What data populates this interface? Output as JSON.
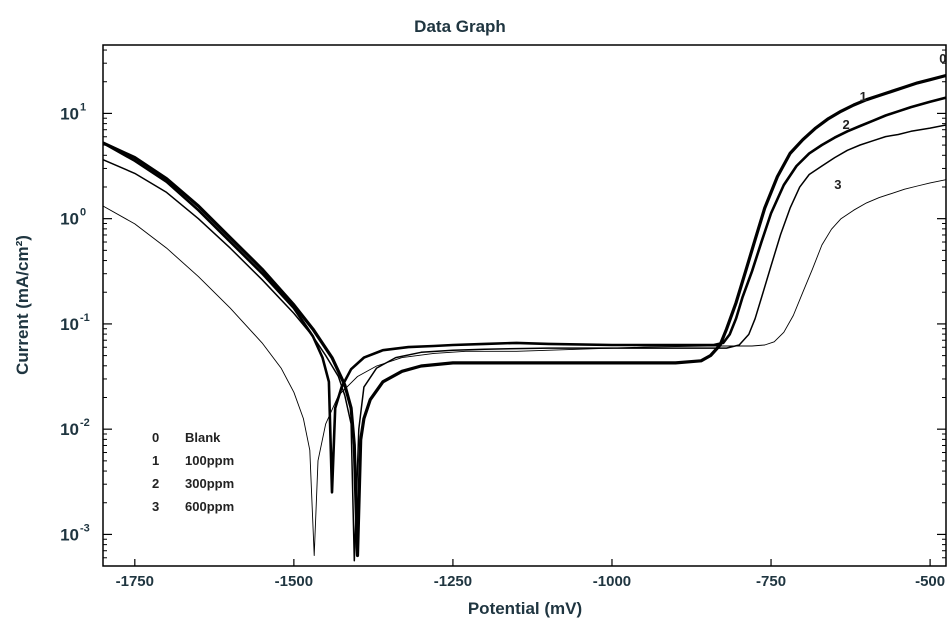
{
  "chart_data": {
    "type": "line",
    "title": "Data Graph",
    "xlabel": "Potential (mV)",
    "ylabel": "Current (mA/cm²)",
    "xlim": [
      -1800,
      -475
    ],
    "ylim_log10": [
      -3.3,
      1.65
    ],
    "y_scale": "log",
    "grid": false,
    "x_ticks": [
      -1750,
      -1500,
      -1250,
      -1000,
      -750,
      -500
    ],
    "x_tick_labels": [
      "-1750",
      "-1500",
      "-1250",
      "-1000",
      "-750",
      "-500"
    ],
    "y_ticks": [
      {
        "base": "10",
        "exp": "1",
        "log": 1
      },
      {
        "base": "10",
        "exp": "0",
        "log": 0
      },
      {
        "base": "10",
        "exp": "-1",
        "log": -1
      },
      {
        "base": "10",
        "exp": "-2",
        "log": -2
      },
      {
        "base": "10",
        "exp": "-3",
        "log": -3
      }
    ],
    "legend": {
      "position": "bottom-left",
      "entries": [
        {
          "key": "0",
          "label": "Blank"
        },
        {
          "key": "1",
          "label": "100ppm"
        },
        {
          "key": "2",
          "label": "300ppm"
        },
        {
          "key": "3",
          "label": "600ppm"
        }
      ]
    },
    "series": [
      {
        "key": "0",
        "color": "#000000",
        "x": [
          -1800,
          -1750,
          -1700,
          -1650,
          -1600,
          -1550,
          -1500,
          -1470,
          -1440,
          -1420,
          -1410,
          -1405,
          -1400,
          -1395,
          -1390,
          -1380,
          -1360,
          -1330,
          -1300,
          -1250,
          -1200,
          -1100,
          -1000,
          -900,
          -860,
          -845,
          -830,
          -820,
          -805,
          -790,
          -775,
          -760,
          -740,
          -720,
          -700,
          -680,
          -660,
          -640,
          -620,
          -600,
          -580,
          -560,
          -540,
          -520,
          -500,
          -475
        ],
        "logy": [
          0.72,
          0.58,
          0.38,
          0.12,
          -0.18,
          -0.48,
          -0.82,
          -1.05,
          -1.32,
          -1.58,
          -1.8,
          -2.15,
          -3.2,
          -2.1,
          -1.9,
          -1.72,
          -1.55,
          -1.45,
          -1.4,
          -1.37,
          -1.37,
          -1.37,
          -1.37,
          -1.37,
          -1.35,
          -1.3,
          -1.2,
          -1.05,
          -0.8,
          -0.5,
          -0.2,
          0.1,
          0.4,
          0.62,
          0.75,
          0.86,
          0.95,
          1.02,
          1.08,
          1.13,
          1.17,
          1.21,
          1.25,
          1.29,
          1.32,
          1.36
        ]
      },
      {
        "key": "1",
        "color": "#000000",
        "x": [
          -1800,
          -1750,
          -1700,
          -1650,
          -1600,
          -1550,
          -1500,
          -1470,
          -1455,
          -1445,
          -1440,
          -1435,
          -1425,
          -1410,
          -1390,
          -1360,
          -1320,
          -1280,
          -1250,
          -1200,
          -1150,
          -1100,
          -1000,
          -900,
          -840,
          -825,
          -815,
          -805,
          -795,
          -780,
          -765,
          -750,
          -730,
          -710,
          -690,
          -670,
          -650,
          -630,
          -610,
          -590,
          -570,
          -550,
          -530,
          -500,
          -475
        ],
        "logy": [
          0.72,
          0.55,
          0.35,
          0.08,
          -0.22,
          -0.52,
          -0.85,
          -1.12,
          -1.32,
          -1.55,
          -2.6,
          -1.8,
          -1.6,
          -1.43,
          -1.32,
          -1.25,
          -1.22,
          -1.21,
          -1.2,
          -1.19,
          -1.18,
          -1.19,
          -1.2,
          -1.2,
          -1.2,
          -1.18,
          -1.1,
          -0.95,
          -0.75,
          -0.5,
          -0.22,
          0.05,
          0.32,
          0.5,
          0.62,
          0.7,
          0.77,
          0.83,
          0.88,
          0.93,
          0.98,
          1.02,
          1.06,
          1.11,
          1.15
        ]
      },
      {
        "key": "2",
        "color": "#000000",
        "x": [
          -1800,
          -1750,
          -1700,
          -1650,
          -1600,
          -1550,
          -1500,
          -1470,
          -1450,
          -1430,
          -1420,
          -1410,
          -1405,
          -1398,
          -1390,
          -1370,
          -1340,
          -1300,
          -1250,
          -1200,
          -1100,
          -1000,
          -900,
          -820,
          -800,
          -785,
          -775,
          -765,
          -750,
          -735,
          -720,
          -705,
          -690,
          -670,
          -650,
          -630,
          -610,
          -590,
          -570,
          -550,
          -530,
          -500,
          -475
        ],
        "logy": [
          0.56,
          0.43,
          0.25,
          0.0,
          -0.28,
          -0.58,
          -0.9,
          -1.12,
          -1.3,
          -1.5,
          -1.68,
          -1.95,
          -3.25,
          -2.0,
          -1.6,
          -1.42,
          -1.32,
          -1.27,
          -1.25,
          -1.24,
          -1.23,
          -1.23,
          -1.23,
          -1.23,
          -1.2,
          -1.1,
          -0.95,
          -0.75,
          -0.45,
          -0.15,
          0.1,
          0.3,
          0.42,
          0.5,
          0.58,
          0.65,
          0.7,
          0.74,
          0.78,
          0.8,
          0.83,
          0.86,
          0.89
        ]
      },
      {
        "key": "3",
        "color": "#000000",
        "x": [
          -1800,
          -1750,
          -1700,
          -1650,
          -1600,
          -1550,
          -1520,
          -1500,
          -1485,
          -1475,
          -1468,
          -1462,
          -1450,
          -1430,
          -1400,
          -1370,
          -1330,
          -1280,
          -1230,
          -1150,
          -1050,
          -950,
          -850,
          -780,
          -760,
          -745,
          -730,
          -715,
          -700,
          -685,
          -670,
          -655,
          -640,
          -620,
          -600,
          -580,
          -560,
          -540,
          -520,
          -500,
          -475
        ],
        "logy": [
          0.12,
          -0.05,
          -0.28,
          -0.55,
          -0.85,
          -1.18,
          -1.42,
          -1.65,
          -1.9,
          -2.2,
          -3.2,
          -2.3,
          -1.95,
          -1.68,
          -1.5,
          -1.4,
          -1.32,
          -1.28,
          -1.26,
          -1.26,
          -1.24,
          -1.22,
          -1.21,
          -1.21,
          -1.2,
          -1.17,
          -1.08,
          -0.92,
          -0.7,
          -0.48,
          -0.25,
          -0.1,
          0.0,
          0.08,
          0.15,
          0.2,
          0.24,
          0.28,
          0.31,
          0.34,
          0.37
        ]
      }
    ],
    "curve_labels": [
      {
        "text": "0",
        "x": -480,
        "logy": 1.48
      },
      {
        "text": "1",
        "x": -605,
        "logy": 1.12
      },
      {
        "text": "2",
        "x": -632,
        "logy": 0.85
      },
      {
        "text": "3",
        "x": -645,
        "logy": 0.28
      }
    ]
  }
}
